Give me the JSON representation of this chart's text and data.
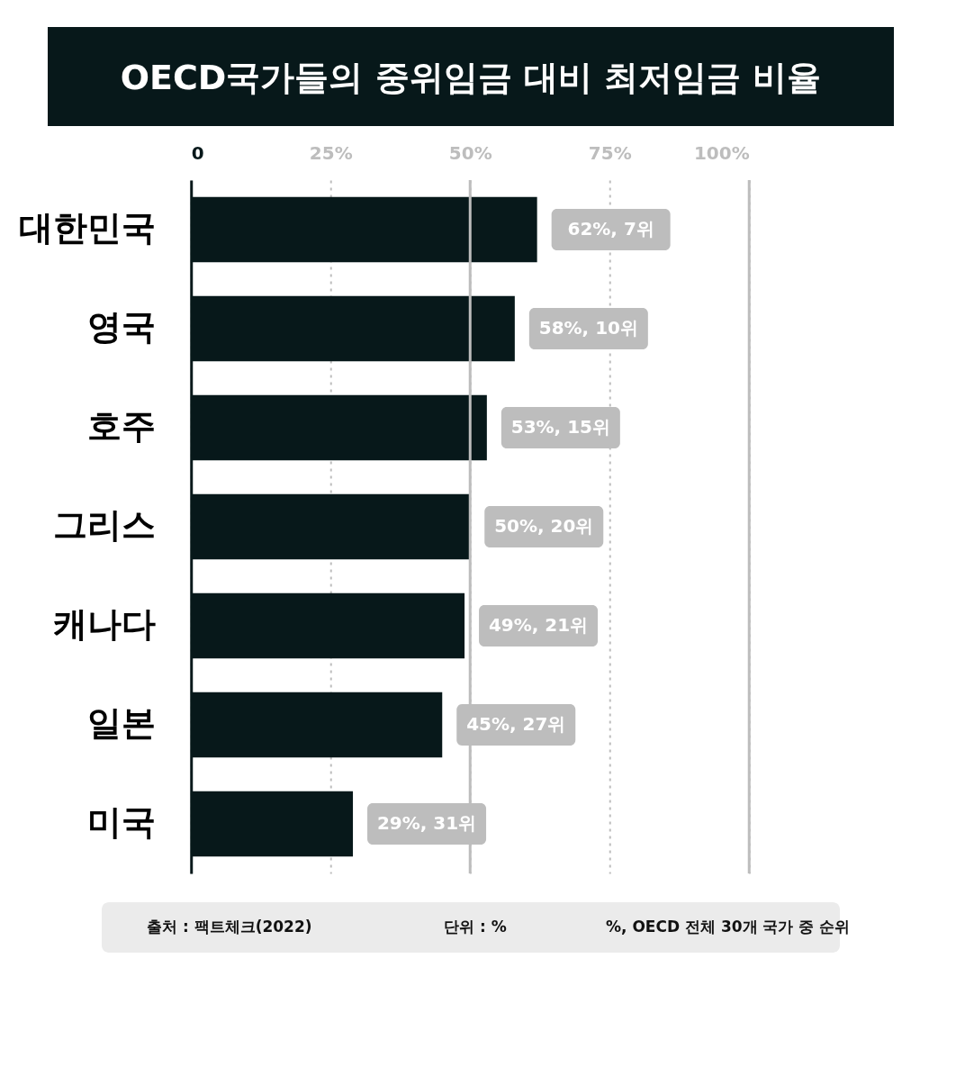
{
  "chart_data": {
    "type": "bar",
    "orientation": "horizontal",
    "title": "OECD국가들의 중위임금 대비 최저임금 비율",
    "categories": [
      "대한민국",
      "영국",
      "호주",
      "그리스",
      "캐나다",
      "일본",
      "미국"
    ],
    "values": [
      62,
      58,
      53,
      50,
      49,
      45,
      29
    ],
    "color": "#07181a",
    "value_labels": [
      "62%, 7위",
      "58%, 10위",
      "53%, 15위",
      "50%, 20위",
      "49%, 21위",
      "45%, 27위",
      "29%, 31위"
    ],
    "xlim": [
      0,
      100
    ],
    "xticks": [
      0,
      {
        "value": 25,
        "label": "25%"
      },
      {
        "value": 50,
        "label": "50%"
      },
      {
        "value": 75,
        "label": "75%"
      },
      {
        "value": 100,
        "label": "100%"
      }
    ],
    "grid": "x",
    "ref_lines": [
      {
        "axis": "x",
        "value": 50,
        "color": "#bdbdbd"
      },
      {
        "axis": "x",
        "value": 100,
        "color": "#bdbdbd"
      }
    ],
    "annotations": [
      "출처 : 팩트체크(2022)",
      "단위 : %",
      "%, OECD 전체 30개 국가 중 순위"
    ]
  }
}
